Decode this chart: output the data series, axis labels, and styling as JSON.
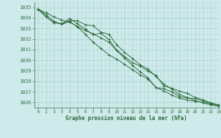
{
  "background_color": "#ceeaea",
  "grid_color_major": "#aacfcf",
  "grid_color_minor": "#b8dada",
  "line_color": "#2d6b3c",
  "xlabel": "Graphe pression niveau de la mer (hPa)",
  "xlabel_color": "#2d6b3c",
  "tick_color": "#2d6b3c",
  "ylim": [
    1025.5,
    1035.5
  ],
  "xlim": [
    -0.5,
    23
  ],
  "yticks": [
    1026,
    1027,
    1028,
    1029,
    1030,
    1031,
    1032,
    1033,
    1034,
    1035
  ],
  "xticks": [
    0,
    1,
    2,
    3,
    4,
    5,
    6,
    7,
    8,
    9,
    10,
    11,
    12,
    13,
    14,
    15,
    16,
    17,
    18,
    19,
    20,
    21,
    22,
    23
  ],
  "series": [
    [
      1034.8,
      1034.5,
      1034.1,
      1033.8,
      1033.6,
      1033.2,
      1032.8,
      1032.5,
      1032.1,
      1031.7,
      1030.9,
      1030.2,
      1029.5,
      1028.9,
      1028.3,
      1027.4,
      1027.1,
      1026.7,
      1026.4,
      1026.2,
      1026.1,
      1026.0,
      1025.9,
      1025.75
    ],
    [
      1034.85,
      1034.3,
      1033.7,
      1033.4,
      1033.65,
      1033.15,
      1032.45,
      1031.7,
      1031.1,
      1030.5,
      1030.1,
      1029.6,
      1029.1,
      1028.6,
      1028.2,
      1027.4,
      1027.3,
      1027.0,
      1026.55,
      1026.4,
      1026.35,
      1026.15,
      1025.85,
      1025.65
    ],
    [
      1034.85,
      1034.1,
      1033.55,
      1033.45,
      1033.95,
      1033.45,
      1032.95,
      1032.4,
      1032.55,
      1031.95,
      1030.95,
      1030.35,
      1029.75,
      1029.45,
      1028.95,
      1028.55,
      1027.55,
      1027.35,
      1027.05,
      1026.85,
      1026.45,
      1026.25,
      1025.95,
      1025.75
    ],
    [
      1034.8,
      1034.1,
      1033.55,
      1033.45,
      1033.75,
      1033.75,
      1033.35,
      1033.25,
      1032.65,
      1032.45,
      1031.45,
      1030.75,
      1030.15,
      1029.55,
      1029.15,
      1028.45,
      1027.75,
      1027.25,
      1026.75,
      1026.45,
      1026.15,
      1025.95,
      1025.75,
      1025.65
    ]
  ]
}
